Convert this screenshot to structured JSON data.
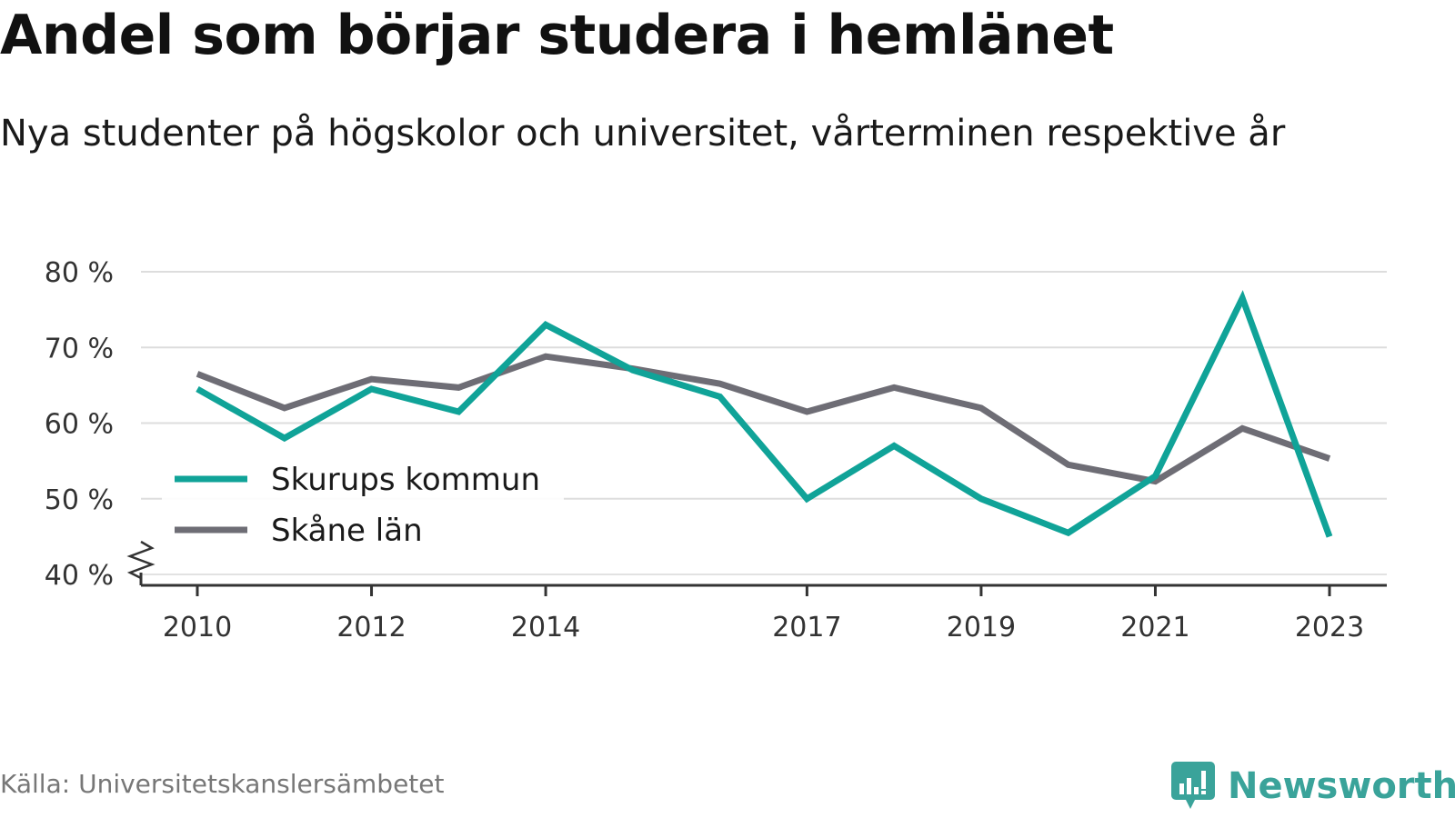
{
  "header": {
    "title": "Andel som börjar studera i hemlänet",
    "subtitle": "Nya studenter på högskolor och universitet, vårterminen respektive år"
  },
  "footer": {
    "source": "Källa: Universitetskanslersämbetet",
    "brand": "Newsworthy",
    "brand_color": "#3aa39a",
    "brand_icon": "newsworthy-logo-icon"
  },
  "chart_data": {
    "type": "line",
    "x": [
      2010,
      2011,
      2012,
      2013,
      2014,
      2015,
      2016,
      2017,
      2018,
      2019,
      2020,
      2021,
      2022,
      2023
    ],
    "x_tick_labels": [
      "2010",
      "2012",
      "2014",
      "2017",
      "2019",
      "2021",
      "2023"
    ],
    "y_tick_labels": [
      "80 %",
      "70 %",
      "60 %",
      "50 %",
      "40 %"
    ],
    "y_ticks": [
      80,
      70,
      60,
      50,
      40
    ],
    "ylim": [
      40,
      80
    ],
    "xlim": [
      2009.4,
      2023.6
    ],
    "grid": true,
    "axis_break": true,
    "legend_position": "left-middle",
    "series": [
      {
        "name": "Skurups kommun",
        "color": "#10a398",
        "values": [
          64.5,
          58,
          64.5,
          61.5,
          73,
          67,
          63.5,
          50,
          57,
          50,
          45.5,
          53,
          76.5,
          45
        ]
      },
      {
        "name": "Skåne län",
        "color": "#6e6d75",
        "values": [
          66.5,
          62,
          65.8,
          64.7,
          68.8,
          67.2,
          65.2,
          61.5,
          64.7,
          62,
          54.5,
          52.3,
          59.3,
          55.3
        ]
      }
    ]
  }
}
